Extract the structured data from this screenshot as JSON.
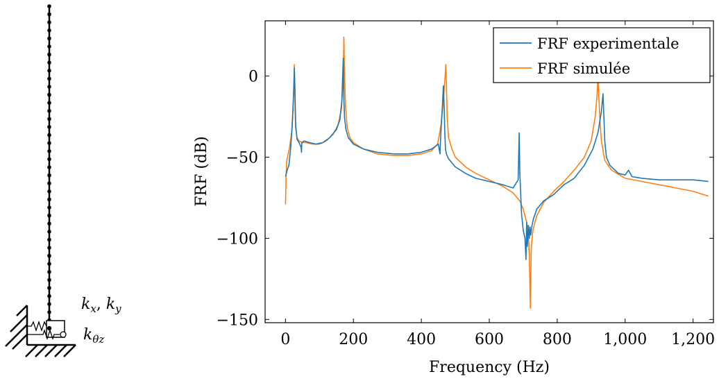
{
  "model_diagram": {
    "label_translation_stiffness_k": "k",
    "label_translation_stiffness_sub_x": "x",
    "label_translation_stiffness_sep": ", ",
    "label_translation_stiffness_k2": "k",
    "label_translation_stiffness_sub_y": "y",
    "label_rotation_stiffness_k": "k",
    "label_rotation_stiffness_sub": "θz",
    "beam_node_count": 41
  },
  "chart_data": {
    "type": "line",
    "title": "",
    "xlabel": "Frequency (Hz)",
    "ylabel": "FRF (dB)",
    "xlim": [
      -60,
      1260
    ],
    "ylim": [
      -152,
      34
    ],
    "xticks": [
      0,
      200,
      400,
      600,
      800,
      1000,
      1200
    ],
    "xtick_labels": [
      "0",
      "200",
      "400",
      "600",
      "800",
      "1,000",
      "1,200"
    ],
    "yticks": [
      -150,
      -100,
      -50,
      0
    ],
    "ytick_labels": [
      "−150",
      "−100",
      "−50",
      "0"
    ],
    "grid": false,
    "legend_position": "top-right",
    "series": [
      {
        "name": "FRF experimentale",
        "color": "#1f77b4",
        "x": [
          0,
          5,
          10,
          15,
          20,
          24,
          26,
          28,
          30,
          34,
          40,
          46,
          47,
          48,
          55,
          70,
          90,
          110,
          130,
          150,
          160,
          166,
          170,
          172,
          174,
          178,
          185,
          200,
          230,
          270,
          320,
          360,
          400,
          430,
          450,
          455,
          456,
          458,
          462,
          465,
          467,
          469,
          471,
          474,
          480,
          500,
          530,
          560,
          600,
          640,
          670,
          685,
          688,
          690,
          692,
          695,
          700,
          705,
          708,
          710,
          712,
          715,
          718,
          720,
          722,
          725,
          730,
          740,
          760,
          790,
          820,
          850,
          880,
          905,
          920,
          930,
          935,
          937,
          940,
          945,
          955,
          980,
          1000,
          1010,
          1020,
          1050,
          1100,
          1150,
          1200,
          1245
        ],
        "y": [
          -62,
          -58,
          -55,
          -45,
          -30,
          -10,
          5,
          -10,
          -30,
          -39,
          -41,
          -44,
          -47,
          -41,
          -40,
          -41,
          -42,
          -41,
          -38,
          -33,
          -27,
          -15,
          11,
          -15,
          -26,
          -33,
          -38,
          -42,
          -45,
          -47,
          -48,
          -48,
          -47,
          -45,
          -42,
          -48,
          -42,
          -33,
          -18,
          -6,
          -18,
          -35,
          -45,
          -48,
          -51,
          -56,
          -60,
          -63,
          -65,
          -67,
          -69,
          -64,
          -35,
          -60,
          -70,
          -85,
          -95,
          -100,
          -113,
          -90,
          -105,
          -92,
          -100,
          -93,
          -98,
          -93,
          -88,
          -82,
          -77,
          -73,
          -67,
          -63,
          -55,
          -45,
          -35,
          -22,
          -11,
          -22,
          -40,
          -50,
          -55,
          -60,
          -61,
          -58,
          -62,
          -63,
          -64,
          -64,
          -64,
          -65
        ]
      },
      {
        "name": "FRF simulée",
        "color": "#ff7f0e",
        "x": [
          0,
          2,
          4,
          8,
          12,
          18,
          22,
          25,
          26,
          27,
          28,
          30,
          34,
          40,
          50,
          60,
          80,
          100,
          120,
          140,
          155,
          165,
          170,
          172,
          174,
          177,
          182,
          190,
          200,
          230,
          270,
          320,
          360,
          400,
          430,
          448,
          458,
          465,
          470,
          472,
          474,
          476,
          480,
          490,
          500,
          530,
          560,
          600,
          640,
          670,
          690,
          700,
          710,
          715,
          718,
          721,
          722,
          723,
          725,
          728,
          732,
          740,
          760,
          790,
          820,
          850,
          880,
          900,
          912,
          918,
          920,
          922,
          925,
          930,
          940,
          960,
          1000,
          1050,
          1100,
          1150,
          1200,
          1245
        ],
        "y": [
          -79,
          -60,
          -52,
          -48,
          -44,
          -35,
          -20,
          -5,
          7,
          -5,
          -20,
          -32,
          -38,
          -40,
          -41,
          -41,
          -42,
          -42,
          -40,
          -36,
          -30,
          -20,
          0,
          24,
          0,
          -20,
          -32,
          -38,
          -41,
          -45,
          -48,
          -49,
          -49,
          -48,
          -46,
          -42,
          -30,
          -15,
          0,
          7,
          -5,
          -25,
          -38,
          -45,
          -50,
          -56,
          -60,
          -64,
          -68,
          -72,
          -77,
          -82,
          -90,
          -98,
          -110,
          -143,
          -130,
          -110,
          -102,
          -96,
          -92,
          -86,
          -78,
          -71,
          -65,
          -58,
          -50,
          -40,
          -25,
          -10,
          0,
          -10,
          -25,
          -40,
          -52,
          -58,
          -63,
          -65,
          -67,
          -69,
          -71,
          -74
        ]
      }
    ]
  }
}
